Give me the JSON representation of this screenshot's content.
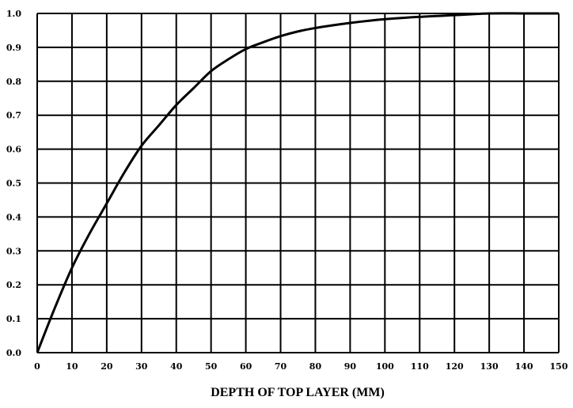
{
  "chart_data": {
    "type": "line",
    "title": "",
    "xlabel": "DEPTH OF TOP LAYER (MM)",
    "ylabel": "",
    "xlim": [
      0,
      150
    ],
    "ylim": [
      0.0,
      1.0
    ],
    "x_ticks": [
      "0",
      "10",
      "20",
      "30",
      "40",
      "50",
      "60",
      "70",
      "80",
      "90",
      "100",
      "110",
      "120",
      "130",
      "140",
      "150"
    ],
    "y_ticks": [
      "0.0",
      "0.1",
      "0.2",
      "0.3",
      "0.4",
      "0.5",
      "0.6",
      "0.7",
      "0.8",
      "0.9",
      "1.0"
    ],
    "grid": true,
    "series": [
      {
        "x": [
          0,
          5,
          10,
          15,
          20,
          25,
          30,
          35,
          40,
          45,
          50,
          55,
          60,
          65,
          70,
          75,
          80,
          85,
          90,
          95,
          100,
          110,
          120,
          130,
          140,
          150
        ],
        "y": [
          0.0,
          0.13,
          0.25,
          0.35,
          0.44,
          0.53,
          0.61,
          0.67,
          0.73,
          0.78,
          0.83,
          0.865,
          0.895,
          0.915,
          0.933,
          0.947,
          0.957,
          0.965,
          0.972,
          0.978,
          0.983,
          0.99,
          0.995,
          1.0,
          1.0,
          1.0
        ]
      }
    ]
  }
}
